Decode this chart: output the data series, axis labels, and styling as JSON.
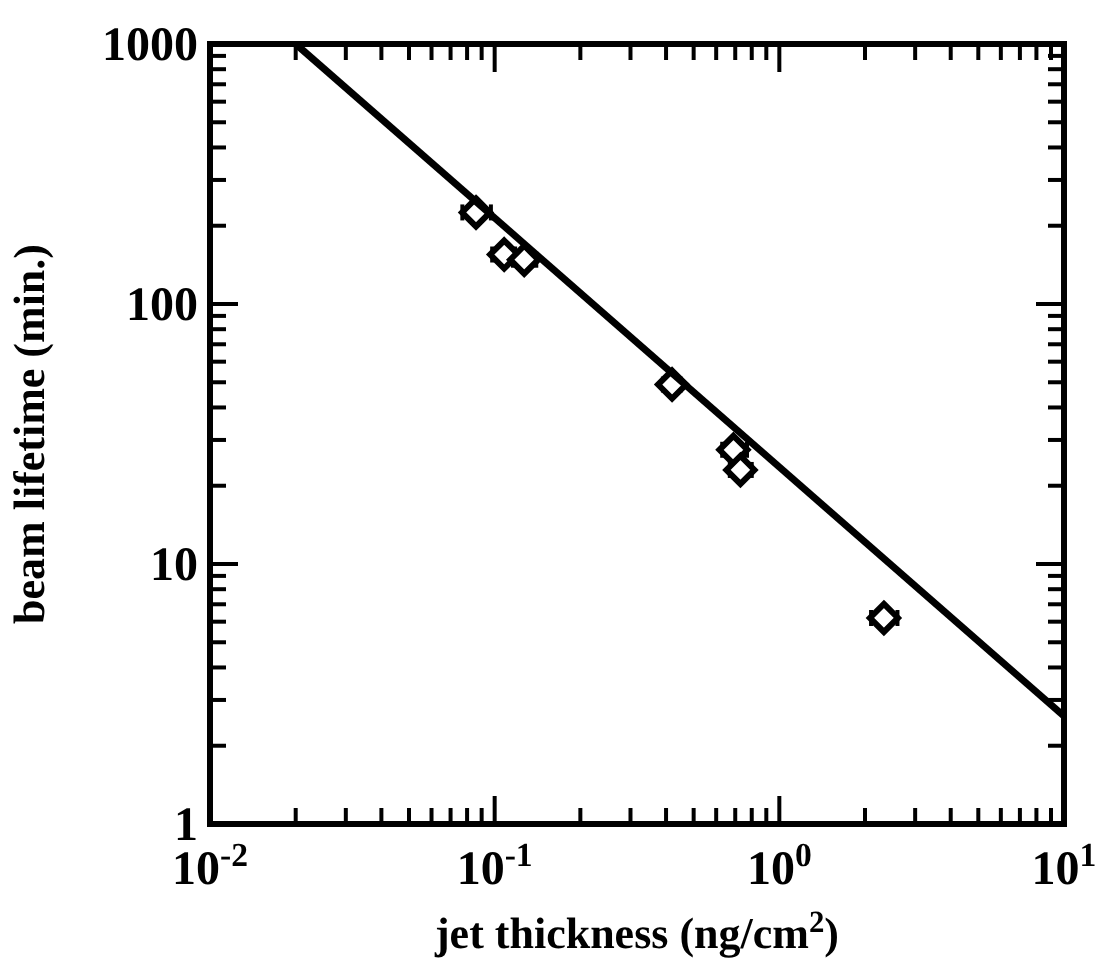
{
  "chart_data": {
    "type": "scatter",
    "xlabel": "jet thickness (ng/cm$^{2}$)",
    "ylabel": "beam lifetime (min.)",
    "log": "xy",
    "marker": "diamond",
    "grid": false,
    "xlim": [
      0.01,
      10
    ],
    "ylim": [
      1,
      1000
    ],
    "xticks": [
      {
        "value": 0.01,
        "label": "10$^{-2}$"
      },
      {
        "value": 0.02,
        "label": null
      },
      {
        "value": 0.03,
        "label": null
      },
      {
        "value": 0.04,
        "label": null
      },
      {
        "value": 0.05,
        "label": null
      },
      {
        "value": 0.06,
        "label": null
      },
      {
        "value": 0.07,
        "label": null
      },
      {
        "value": 0.08,
        "label": null
      },
      {
        "value": 0.09,
        "label": null
      },
      {
        "value": 0.1,
        "label": "10$^{-1}$"
      },
      {
        "value": 0.2,
        "label": null
      },
      {
        "value": 0.3,
        "label": null
      },
      {
        "value": 0.4,
        "label": null
      },
      {
        "value": 0.5,
        "label": null
      },
      {
        "value": 0.6,
        "label": null
      },
      {
        "value": 0.7,
        "label": null
      },
      {
        "value": 0.8,
        "label": null
      },
      {
        "value": 0.9,
        "label": null
      },
      {
        "value": 1,
        "label": "10$^{0}$"
      },
      {
        "value": 2,
        "label": null
      },
      {
        "value": 3,
        "label": null
      },
      {
        "value": 4,
        "label": null
      },
      {
        "value": 5,
        "label": null
      },
      {
        "value": 6,
        "label": null
      },
      {
        "value": 7,
        "label": null
      },
      {
        "value": 8,
        "label": null
      },
      {
        "value": 9,
        "label": null
      },
      {
        "value": 10,
        "label": "10$^{1}$"
      }
    ],
    "yticks": [
      1,
      {
        "value": 2,
        "label": null
      },
      {
        "value": 3,
        "label": null
      },
      {
        "value": 4,
        "label": null
      },
      {
        "value": 5,
        "label": null
      },
      {
        "value": 6,
        "label": null
      },
      {
        "value": 7,
        "label": null
      },
      {
        "value": 8,
        "label": null
      },
      {
        "value": 9,
        "label": null
      },
      10,
      {
        "value": 20,
        "label": null
      },
      {
        "value": 30,
        "label": null
      },
      {
        "value": 40,
        "label": null
      },
      {
        "value": 50,
        "label": null
      },
      {
        "value": 60,
        "label": null
      },
      {
        "value": 70,
        "label": null
      },
      {
        "value": 80,
        "label": null
      },
      {
        "value": 90,
        "label": null
      },
      100,
      {
        "value": 200,
        "label": null
      },
      {
        "value": 300,
        "label": null
      },
      {
        "value": 400,
        "label": null
      },
      {
        "value": 500,
        "label": null
      },
      {
        "value": 600,
        "label": null
      },
      {
        "value": 700,
        "label": null
      },
      {
        "value": 800,
        "label": null
      },
      {
        "value": 900,
        "label": null
      },
      1000
    ],
    "series": [
      {
        "color": "#000000",
        "x": [
          0.086,
          0.108,
          0.127,
          0.42,
          0.69,
          0.73,
          2.33
        ],
        "values": [
          225,
          155,
          148,
          49,
          27.5,
          23,
          6.2
        ],
        "xerrors": [
          [
            0.077,
            0.097
          ],
          [
            0.098,
            0.118
          ],
          [
            0.116,
            0.14
          ],
          [
            0.39,
            0.45
          ],
          [
            0.63,
            0.77
          ],
          [
            0.67,
            0.8
          ],
          [
            2.1,
            2.6
          ]
        ]
      },
      {
        "type": "line",
        "color": "#000000",
        "marker": "none",
        "x": [
          0.02,
          10
        ],
        "values": [
          1000,
          2.6
        ]
      }
    ]
  }
}
